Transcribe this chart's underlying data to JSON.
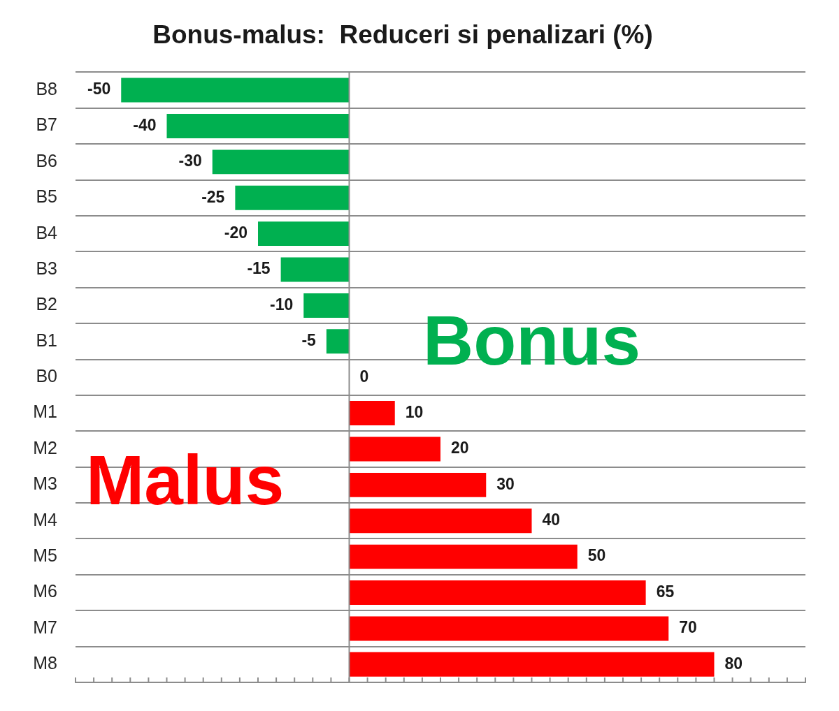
{
  "chart_data": {
    "type": "bar",
    "orientation": "horizontal",
    "title": "Bonus-malus:  Reduceri si penalizari (%)",
    "categories": [
      "B8",
      "B7",
      "B6",
      "B5",
      "B4",
      "B3",
      "B2",
      "B1",
      "B0",
      "M1",
      "M2",
      "M3",
      "M4",
      "M5",
      "M6",
      "M7",
      "M8"
    ],
    "series": [
      {
        "name": "Bonus",
        "color": "#00b050",
        "values": [
          -50,
          -40,
          -30,
          -25,
          -20,
          -15,
          -10,
          -5,
          0,
          null,
          null,
          null,
          null,
          null,
          null,
          null,
          null
        ]
      },
      {
        "name": "Malus",
        "color": "#ff0000",
        "values": [
          null,
          null,
          null,
          null,
          null,
          null,
          null,
          null,
          null,
          10,
          20,
          30,
          40,
          50,
          65,
          70,
          80
        ]
      }
    ],
    "xlim": [
      -60,
      100
    ],
    "xticks": [
      {
        "value": -60,
        "label": null
      },
      {
        "value": -56,
        "label": null
      },
      {
        "value": -52,
        "label": null
      },
      {
        "value": -48,
        "label": null
      },
      {
        "value": -44,
        "label": null
      },
      {
        "value": -40,
        "label": null
      },
      {
        "value": -36,
        "label": null
      },
      {
        "value": -32,
        "label": null
      },
      {
        "value": -28,
        "label": null
      },
      {
        "value": -24,
        "label": null
      },
      {
        "value": -20,
        "label": null
      },
      {
        "value": -16,
        "label": null
      },
      {
        "value": -12,
        "label": null
      },
      {
        "value": -8,
        "label": null
      },
      {
        "value": -4,
        "label": null
      },
      {
        "value": 0,
        "label": null
      },
      {
        "value": 4,
        "label": null
      },
      {
        "value": 8,
        "label": null
      },
      {
        "value": 12,
        "label": null
      },
      {
        "value": 16,
        "label": null
      },
      {
        "value": 20,
        "label": null
      },
      {
        "value": 24,
        "label": null
      },
      {
        "value": 28,
        "label": null
      },
      {
        "value": 32,
        "label": null
      },
      {
        "value": 36,
        "label": null
      },
      {
        "value": 40,
        "label": null
      },
      {
        "value": 44,
        "label": null
      },
      {
        "value": 48,
        "label": null
      },
      {
        "value": 52,
        "label": null
      },
      {
        "value": 56,
        "label": null
      },
      {
        "value": 60,
        "label": null
      },
      {
        "value": 64,
        "label": null
      },
      {
        "value": 68,
        "label": null
      },
      {
        "value": 72,
        "label": null
      },
      {
        "value": 76,
        "label": null
      },
      {
        "value": 80,
        "label": null
      },
      {
        "value": 84,
        "label": null
      },
      {
        "value": 88,
        "label": null
      },
      {
        "value": 92,
        "label": null
      },
      {
        "value": 96,
        "label": null
      },
      {
        "value": 100,
        "label": null
      }
    ],
    "tick_labels": "y",
    "grid": "y",
    "data_labels": true
  }
}
